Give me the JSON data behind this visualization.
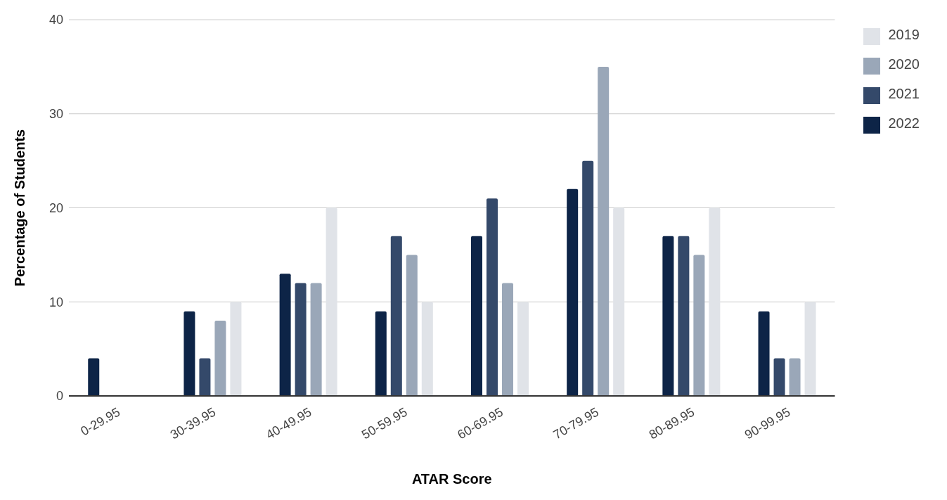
{
  "chart_data": {
    "type": "bar",
    "xlabel": "ATAR Score",
    "ylabel": "Percentage of Students",
    "categories": [
      "0-29.95",
      "30-39.95",
      "40-49.95",
      "50-59.95",
      "60-69.95",
      "70-79.95",
      "80-89.95",
      "90-99.95"
    ],
    "series": [
      {
        "name": "2022",
        "color": "#0d2447",
        "values": [
          4,
          9,
          13,
          9,
          17,
          22,
          17,
          9
        ]
      },
      {
        "name": "2021",
        "color": "#34496a",
        "values": [
          0,
          4,
          12,
          17,
          21,
          25,
          17,
          4
        ]
      },
      {
        "name": "2020",
        "color": "#9aa7b8",
        "values": [
          0,
          8,
          12,
          15,
          12,
          35,
          15,
          4
        ]
      },
      {
        "name": "2019",
        "color": "#e0e3e8",
        "values": [
          0,
          10,
          20,
          10,
          10,
          20,
          20,
          10
        ]
      }
    ],
    "ylim": [
      0,
      40
    ],
    "yticks": [
      0,
      10,
      20,
      30,
      40
    ],
    "grid": "y",
    "legend": "top right"
  }
}
